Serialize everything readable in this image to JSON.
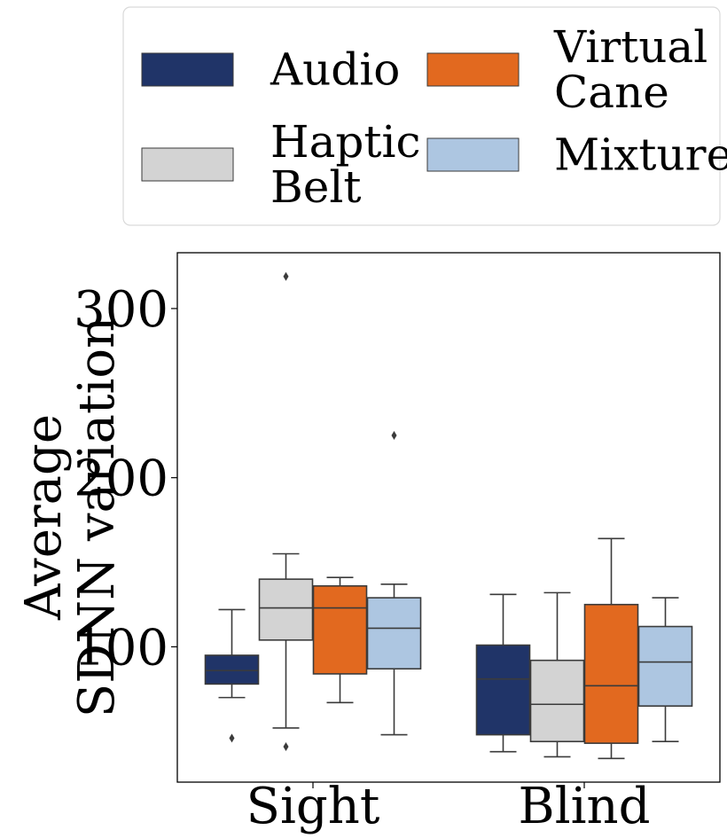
{
  "chart_data": {
    "type": "box",
    "categories": [
      "Sight",
      "Blind"
    ],
    "ylabel": [
      "Average",
      "SDNN variation"
    ],
    "yticks": [
      100,
      200,
      300
    ],
    "ylim": [
      20,
      333
    ],
    "legend": {
      "placement": "top",
      "columns": 2
    },
    "series": [
      {
        "name": [
          "Audio"
        ],
        "color": "#203468",
        "boxes": [
          {
            "min": 70,
            "q1": 78,
            "median": 86,
            "q3": 95,
            "max": 122,
            "outliers": [
              46
            ]
          },
          {
            "min": 38,
            "q1": 48,
            "median": 81,
            "q3": 101,
            "max": 131,
            "outliers": []
          }
        ]
      },
      {
        "name": [
          "Haptic",
          "Belt"
        ],
        "color": "#d3d3d3",
        "boxes": [
          {
            "min": 52,
            "q1": 104,
            "median": 123,
            "q3": 140,
            "max": 155,
            "outliers": [
              41,
              319
            ]
          },
          {
            "min": 35,
            "q1": 44,
            "median": 66,
            "q3": 92,
            "max": 132,
            "outliers": []
          }
        ]
      },
      {
        "name": [
          "Virtual",
          "Cane"
        ],
        "color": "#e2691f",
        "boxes": [
          {
            "min": 67,
            "q1": 84,
            "median": 123,
            "q3": 136,
            "max": 141,
            "outliers": []
          },
          {
            "min": 34,
            "q1": 43,
            "median": 77,
            "q3": 125,
            "max": 164,
            "outliers": []
          }
        ]
      },
      {
        "name": [
          "Mixture"
        ],
        "color": "#adc6e1",
        "boxes": [
          {
            "min": 48,
            "q1": 87,
            "median": 111,
            "q3": 129,
            "max": 137,
            "outliers": [
              225
            ]
          },
          {
            "min": 44,
            "q1": 65,
            "median": 91,
            "q3": 112,
            "max": 129,
            "outliers": []
          }
        ]
      }
    ]
  }
}
